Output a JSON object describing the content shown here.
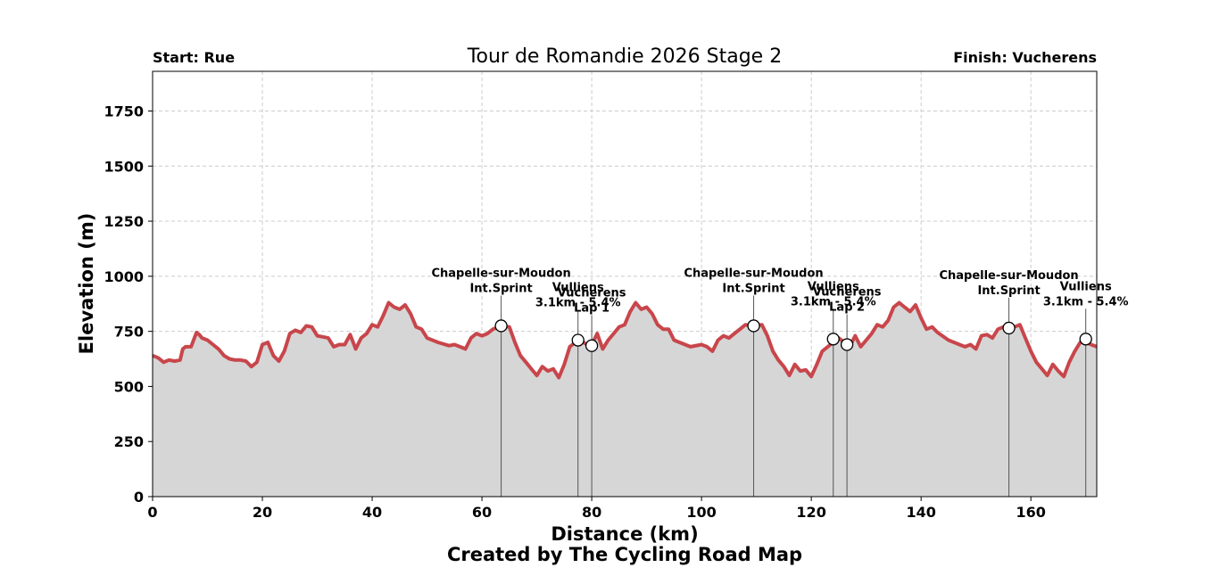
{
  "chart_data": {
    "type": "area",
    "title": "Tour de Romandie 2026 Stage 2",
    "start_label": "Start: Rue",
    "finish_label": "Finish: Vucherens",
    "xlabel": "Distance (km)",
    "ylabel": "Elevation (m)",
    "credit": "Created by The Cycling Road Map",
    "xlim": [
      0,
      172
    ],
    "ylim": [
      0,
      1930
    ],
    "xticks": [
      0,
      20,
      40,
      60,
      80,
      100,
      120,
      140,
      160
    ],
    "yticks": [
      0,
      250,
      500,
      750,
      1000,
      1250,
      1500,
      1750
    ],
    "grid": true,
    "colors": {
      "profile_line": "#c8464b",
      "fill": "#d6d6d6",
      "grid": "#cccccc",
      "marker_line": "#555555"
    },
    "series": [
      {
        "x": [
          0,
          1,
          2,
          3,
          4,
          5,
          5.5,
          6,
          7,
          8,
          8.5,
          9,
          10,
          11,
          12,
          13,
          14,
          15,
          16,
          17,
          18,
          19,
          20,
          21,
          22,
          23,
          24,
          25,
          26,
          27,
          28,
          29,
          30,
          31,
          32,
          33,
          34,
          35,
          36,
          37,
          38,
          39,
          40,
          41,
          42,
          43,
          44,
          45,
          46,
          47,
          48,
          49,
          50,
          52,
          54,
          55,
          56,
          57,
          58,
          59,
          60,
          61,
          62,
          63.5,
          65,
          66,
          67,
          68,
          69,
          70,
          71,
          72,
          73,
          74,
          75,
          76,
          77.5,
          78.5,
          79.7,
          80,
          81,
          82,
          83,
          84,
          85,
          86,
          87,
          88,
          89,
          90,
          91,
          92,
          93,
          94,
          95,
          96,
          97,
          98,
          100,
          101,
          102,
          103,
          104,
          105,
          106,
          107,
          108,
          109.5,
          111,
          112,
          113,
          114,
          115,
          116,
          117,
          118,
          119,
          120,
          121,
          122,
          124,
          124.5,
          125,
          126.5,
          127,
          128,
          129,
          130,
          131,
          132,
          133,
          134,
          135,
          136,
          137,
          138,
          139,
          140,
          141,
          142,
          143,
          145,
          146,
          147,
          148,
          149,
          150,
          151,
          152,
          153,
          154,
          156,
          157,
          158,
          159,
          160,
          161,
          162,
          163,
          164,
          165,
          166,
          167,
          168,
          169,
          170,
          171,
          172
        ],
        "y": [
          640,
          630,
          610,
          620,
          615,
          620,
          670,
          680,
          680,
          745,
          735,
          720,
          710,
          690,
          670,
          640,
          625,
          620,
          620,
          615,
          590,
          610,
          690,
          700,
          640,
          615,
          660,
          740,
          755,
          745,
          775,
          770,
          730,
          725,
          720,
          680,
          690,
          690,
          735,
          670,
          720,
          740,
          780,
          770,
          820,
          880,
          860,
          850,
          870,
          830,
          770,
          760,
          720,
          700,
          685,
          690,
          680,
          670,
          720,
          740,
          730,
          740,
          760,
          775,
          770,
          700,
          640,
          610,
          580,
          550,
          590,
          570,
          580,
          540,
          600,
          680,
          710,
          700,
          680,
          690,
          740,
          670,
          710,
          740,
          770,
          780,
          840,
          880,
          850,
          860,
          830,
          780,
          760,
          760,
          710,
          700,
          690,
          680,
          690,
          680,
          660,
          710,
          730,
          720,
          740,
          760,
          780,
          775,
          780,
          730,
          660,
          620,
          590,
          550,
          600,
          570,
          575,
          545,
          600,
          660,
          700,
          715,
          720,
          690,
          680,
          730,
          680,
          710,
          740,
          780,
          770,
          800,
          860,
          880,
          860,
          840,
          870,
          810,
          760,
          770,
          745,
          710,
          700,
          690,
          680,
          690,
          670,
          730,
          735,
          720,
          760,
          780,
          770,
          780,
          720,
          660,
          610,
          580,
          550,
          600,
          570,
          545,
          610,
          660,
          700,
          700,
          690,
          680
        ]
      }
    ],
    "annotations": [
      {
        "x": 63.5,
        "y": 775,
        "lines": [
          "Chapelle-sur-Moudon",
          "Int.Sprint"
        ]
      },
      {
        "x": 77.5,
        "y": 710,
        "lines": [
          "Vulliens",
          "3.1km - 5.4%"
        ]
      },
      {
        "x": 80,
        "y": 685,
        "lines": [
          "Vucherens",
          "Lap 1"
        ]
      },
      {
        "x": 109.5,
        "y": 775,
        "lines": [
          "Chapelle-sur-Moudon",
          "Int.Sprint"
        ]
      },
      {
        "x": 124,
        "y": 715,
        "lines": [
          "Vulliens",
          "3.1km - 5.4%"
        ]
      },
      {
        "x": 126.5,
        "y": 690,
        "lines": [
          "Vucherens",
          "Lap 2"
        ]
      },
      {
        "x": 156,
        "y": 765,
        "lines": [
          "Chapelle-sur-Moudon",
          "Int.Sprint"
        ]
      },
      {
        "x": 170,
        "y": 715,
        "lines": [
          "Vulliens",
          "3.1km - 5.4%"
        ]
      }
    ]
  }
}
